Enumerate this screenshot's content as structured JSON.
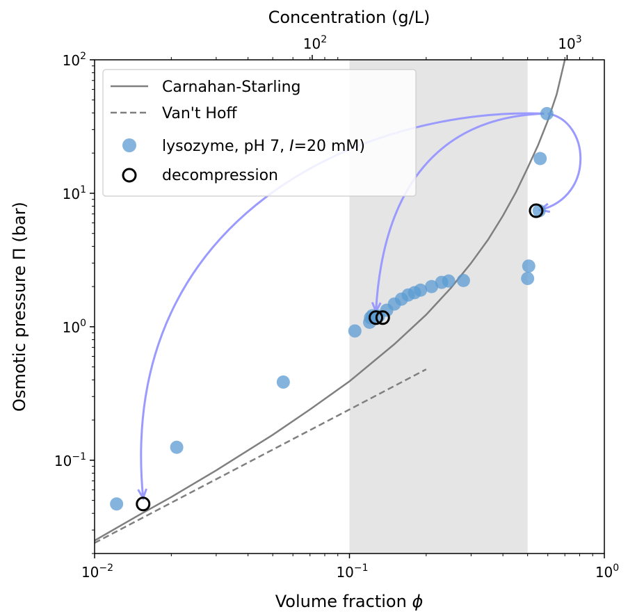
{
  "chart_data": {
    "type": "scatter",
    "title": "",
    "xlabel": "Volume fraction",
    "xlabel_symbol": "ϕ",
    "ylabel": "Osmotic pressure Π (bar)",
    "top_xlabel": "Concentration (g/L)",
    "xscale": "log",
    "yscale": "log",
    "xlim": [
      0.01,
      1
    ],
    "ylim": [
      0.02,
      100
    ],
    "top_xlim": [
      1.4,
      140
    ],
    "x_ticks": [
      {
        "value": 0.01,
        "base": "10",
        "exp": "−2"
      },
      {
        "value": 0.1,
        "base": "10",
        "exp": "−1"
      },
      {
        "value": 1,
        "base": "10",
        "exp": "0"
      }
    ],
    "y_ticks": [
      {
        "value": 0.1,
        "base": "10",
        "exp": "−1"
      },
      {
        "value": 1,
        "base": "10",
        "exp": "0"
      },
      {
        "value": 10,
        "base": "10",
        "exp": "1"
      },
      {
        "value": 100,
        "base": "10",
        "exp": "2"
      }
    ],
    "top_ticks": [
      {
        "value": 100,
        "base": "10",
        "exp": "2"
      },
      {
        "value": 1000,
        "base": "10",
        "exp": "3"
      }
    ],
    "shaded_region": {
      "x_from": 0.1,
      "x_to": 0.5,
      "color": "#e5e5e5"
    },
    "legend": {
      "placement": "upper-left",
      "entries": [
        {
          "label": "Carnahan-Starling",
          "marker": "solid-line"
        },
        {
          "label": "Van't Hoff",
          "marker": "dashed-line"
        },
        {
          "label": "lysozyme, pH 7, I=20 mM)",
          "label_pre": "lysozyme, pH 7, ",
          "label_italic": "I",
          "label_post": "=20 mM)",
          "marker": "filled-circle"
        },
        {
          "label": "decompression",
          "marker": "open-circle"
        }
      ]
    },
    "series": [
      {
        "name": "Carnahan-Starling",
        "kind": "line",
        "style": "solid",
        "color": "#7f7f7f",
        "x": [
          0.01,
          0.015,
          0.02,
          0.03,
          0.05,
          0.07,
          0.1,
          0.15,
          0.2,
          0.25,
          0.3,
          0.35,
          0.4,
          0.45,
          0.5,
          0.55,
          0.6,
          0.65,
          0.7
        ],
        "y": [
          0.025,
          0.039,
          0.053,
          0.084,
          0.155,
          0.24,
          0.39,
          0.74,
          1.23,
          1.95,
          3.0,
          4.5,
          6.8,
          10.2,
          15.5,
          23,
          35,
          55,
          100
        ]
      },
      {
        "name": "Van't Hoff",
        "kind": "line",
        "style": "dashed",
        "color": "#7f7f7f",
        "x": [
          0.01,
          0.02,
          0.05,
          0.1,
          0.2
        ],
        "y": [
          0.024,
          0.048,
          0.12,
          0.24,
          0.48
        ]
      },
      {
        "name": "lysozyme, pH 7, I=20 mM)",
        "kind": "scatter",
        "color": "#5b9bd1",
        "x": [
          0.0122,
          0.021,
          0.055,
          0.105,
          0.12,
          0.121,
          0.123,
          0.13,
          0.14,
          0.15,
          0.16,
          0.17,
          0.18,
          0.19,
          0.21,
          0.23,
          0.245,
          0.28,
          0.5,
          0.505,
          0.555,
          0.56,
          0.595
        ],
        "y": [
          0.047,
          0.125,
          0.385,
          0.93,
          1.08,
          1.17,
          1.21,
          1.2,
          1.33,
          1.48,
          1.61,
          1.73,
          1.8,
          1.88,
          2.0,
          2.15,
          2.2,
          2.22,
          2.3,
          2.85,
          7.4,
          18.2,
          39.5
        ]
      },
      {
        "name": "decompression",
        "kind": "scatter",
        "marker": "open",
        "color": "#000000",
        "x": [
          0.0155,
          0.127,
          0.135,
          0.54
        ],
        "y": [
          0.047,
          1.17,
          1.17,
          7.4
        ]
      }
    ],
    "arrows": [
      {
        "color": "#9a9aff",
        "from": [
          0.58,
          39.5
        ],
        "to": [
          0.0155,
          0.052
        ]
      },
      {
        "color": "#9a9aff",
        "from": [
          0.58,
          39.5
        ],
        "to": [
          0.127,
          1.3
        ]
      },
      {
        "color": "#9a9aff",
        "from": [
          0.6,
          39.5
        ],
        "to": [
          0.56,
          7.5
        ]
      }
    ]
  }
}
